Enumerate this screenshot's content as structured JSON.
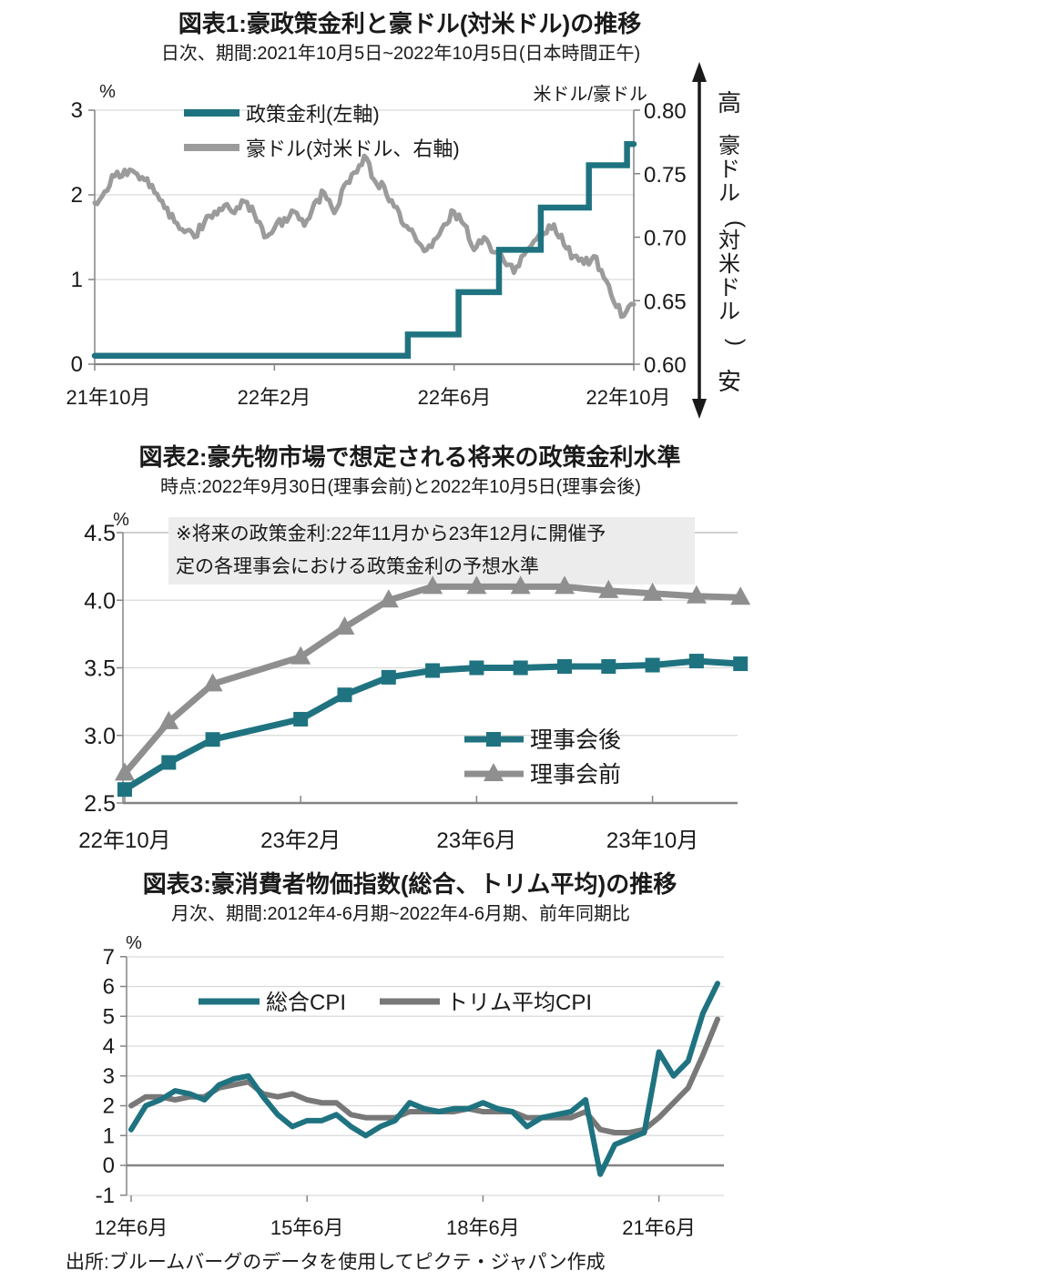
{
  "page": {
    "background": "#ffffff",
    "source_note": "出所:ブルームバーグのデータを使用してピクテ・ジャパン作成"
  },
  "colors": {
    "teal": "#1f7380",
    "gray_fx": "#9b9b9b",
    "gray_series2": "#8f8f8f",
    "gray_series3": "#787878",
    "grid": "#d9d9d9",
    "axis": "#848484",
    "frame_light": "#b3b3b3",
    "text": "#1a1a1a",
    "annotation_bg": "#ececec",
    "arrow": "#1a1a1a"
  },
  "chart_data": [
    {
      "id": "fig1",
      "type": "line",
      "title": "図表1:豪政策金利と豪ドル(対米ドル)の推移",
      "subtitle": "日次、期間:2021年10月5日~2022年10月5日(日本時間正午)",
      "left_axis": {
        "unit": "%",
        "range": [
          0,
          3
        ],
        "tick_values": [
          0,
          1,
          2,
          3
        ],
        "tick_labels": [
          "0",
          "1",
          "2",
          "3"
        ]
      },
      "right_axis": {
        "label": "米ドル/豪ドル",
        "range": [
          0.6,
          0.8
        ],
        "tick_values": [
          0.6,
          0.65,
          0.7,
          0.75,
          0.8
        ],
        "tick_labels": [
          "0.60",
          "0.65",
          "0.70",
          "0.75",
          "0.80"
        ]
      },
      "x_axis": {
        "tick_labels": [
          "21年10月",
          "22年2月",
          "22年6月",
          "22年10月"
        ],
        "tick_months": [
          0,
          4,
          8,
          12
        ],
        "range_months": [
          0,
          12
        ]
      },
      "annotation_arrow": {
        "top": "高",
        "middle": "豪ドル(対米ドル)",
        "bottom": "安"
      },
      "series": [
        {
          "name": "政策金利(左軸)",
          "axis": "left",
          "color_key": "teal",
          "style": "step",
          "points_month_pct": [
            [
              0,
              0.1
            ],
            [
              6.97,
              0.1
            ],
            [
              6.97,
              0.35
            ],
            [
              8.1,
              0.35
            ],
            [
              8.1,
              0.85
            ],
            [
              9.0,
              0.85
            ],
            [
              9.0,
              1.35
            ],
            [
              9.93,
              1.35
            ],
            [
              9.93,
              1.85
            ],
            [
              11.0,
              1.85
            ],
            [
              11.0,
              2.35
            ],
            [
              11.85,
              2.35
            ],
            [
              11.85,
              2.6
            ],
            [
              12.0,
              2.6
            ]
          ]
        },
        {
          "name": "豪ドル(対米ドル、右軸)",
          "axis": "right",
          "color_key": "gray_fx",
          "style": "noisy-line",
          "values": [
            0.727,
            0.736,
            0.748,
            0.753,
            0.751,
            0.745,
            0.735,
            0.723,
            0.712,
            0.704,
            0.7,
            0.712,
            0.72,
            0.725,
            0.719,
            0.728,
            0.718,
            0.7,
            0.707,
            0.715,
            0.72,
            0.709,
            0.727,
            0.735,
            0.719,
            0.741,
            0.751,
            0.764,
            0.745,
            0.74,
            0.724,
            0.709,
            0.702,
            0.689,
            0.698,
            0.71,
            0.72,
            0.71,
            0.69,
            0.7,
            0.688,
            0.681,
            0.672,
            0.686,
            0.697,
            0.703,
            0.71,
            0.694,
            0.685,
            0.679,
            0.685,
            0.668,
            0.649,
            0.638,
            0.647
          ]
        }
      ]
    },
    {
      "id": "fig2",
      "type": "line",
      "title": "図表2:豪先物市場で想定される将来の政策金利水準",
      "subtitle": "時点:2022年9月30日(理事会前)と2022年10月5日(理事会後)",
      "annotation_lines": [
        "※将来の政策金利:22年11月から23年12月に開催予",
        "定の各理事会における政策金利の予想水準"
      ],
      "left_axis": {
        "unit": "%",
        "range": [
          2.5,
          4.5
        ],
        "tick_values": [
          2.5,
          3.0,
          3.5,
          4.0,
          4.5
        ],
        "tick_labels": [
          "2.5",
          "3.0",
          "3.5",
          "4.0",
          "4.5"
        ]
      },
      "x_axis": {
        "tick_labels": [
          "22年10月",
          "23年2月",
          "23年6月",
          "23年10月"
        ],
        "tick_months": [
          0,
          4,
          8,
          12
        ],
        "range_months": [
          0,
          14
        ]
      },
      "months": [
        0,
        1,
        2,
        4,
        5,
        6,
        7,
        8,
        9,
        10,
        11,
        12,
        13,
        14
      ],
      "series": [
        {
          "name": "理事会後",
          "marker": "square",
          "color_key": "teal",
          "values": [
            2.6,
            2.8,
            2.97,
            3.12,
            3.3,
            3.43,
            3.48,
            3.5,
            3.5,
            3.51,
            3.51,
            3.52,
            3.55,
            3.53
          ]
        },
        {
          "name": "理事会前",
          "marker": "triangle",
          "color_key": "gray_series2",
          "values": [
            2.72,
            3.1,
            3.38,
            3.58,
            3.8,
            4.0,
            4.1,
            4.1,
            4.1,
            4.1,
            4.07,
            4.05,
            4.03,
            4.02
          ]
        }
      ]
    },
    {
      "id": "fig3",
      "type": "line",
      "title": "図表3:豪消費者物価指数(総合、トリム平均)の推移",
      "subtitle": "月次、期間:2012年4-6月期~2022年4-6月期、前年同期比",
      "left_axis": {
        "unit": "%",
        "range": [
          -1,
          7
        ],
        "tick_values": [
          -1,
          0,
          1,
          2,
          3,
          4,
          5,
          6,
          7
        ],
        "tick_labels": [
          "-1",
          "0",
          "1",
          "2",
          "3",
          "4",
          "5",
          "6",
          "7"
        ]
      },
      "x_axis": {
        "tick_labels": [
          "12年6月",
          "15年6月",
          "18年6月",
          "21年6月"
        ],
        "tick_quarters": [
          0,
          12,
          24,
          36
        ],
        "range_quarters": [
          0,
          40
        ]
      },
      "series": [
        {
          "name": "総合CPI",
          "color_key": "teal",
          "values": [
            1.2,
            2.0,
            2.2,
            2.5,
            2.4,
            2.2,
            2.7,
            2.9,
            3.0,
            2.3,
            1.7,
            1.3,
            1.5,
            1.5,
            1.7,
            1.3,
            1.0,
            1.3,
            1.5,
            2.1,
            1.9,
            1.8,
            1.9,
            1.9,
            2.1,
            1.9,
            1.8,
            1.3,
            1.6,
            1.7,
            1.8,
            2.2,
            -0.3,
            0.7,
            0.9,
            1.1,
            3.8,
            3.0,
            3.5,
            5.1,
            6.1
          ]
        },
        {
          "name": "トリム平均CPI",
          "color_key": "gray_series3",
          "values": [
            2.0,
            2.3,
            2.3,
            2.2,
            2.3,
            2.3,
            2.6,
            2.7,
            2.8,
            2.4,
            2.3,
            2.4,
            2.2,
            2.1,
            2.1,
            1.7,
            1.6,
            1.6,
            1.6,
            1.8,
            1.8,
            1.8,
            1.8,
            1.9,
            1.8,
            1.8,
            1.8,
            1.6,
            1.6,
            1.6,
            1.6,
            1.8,
            1.2,
            1.1,
            1.1,
            1.2,
            1.6,
            2.1,
            2.6,
            3.7,
            4.9
          ]
        }
      ]
    }
  ]
}
